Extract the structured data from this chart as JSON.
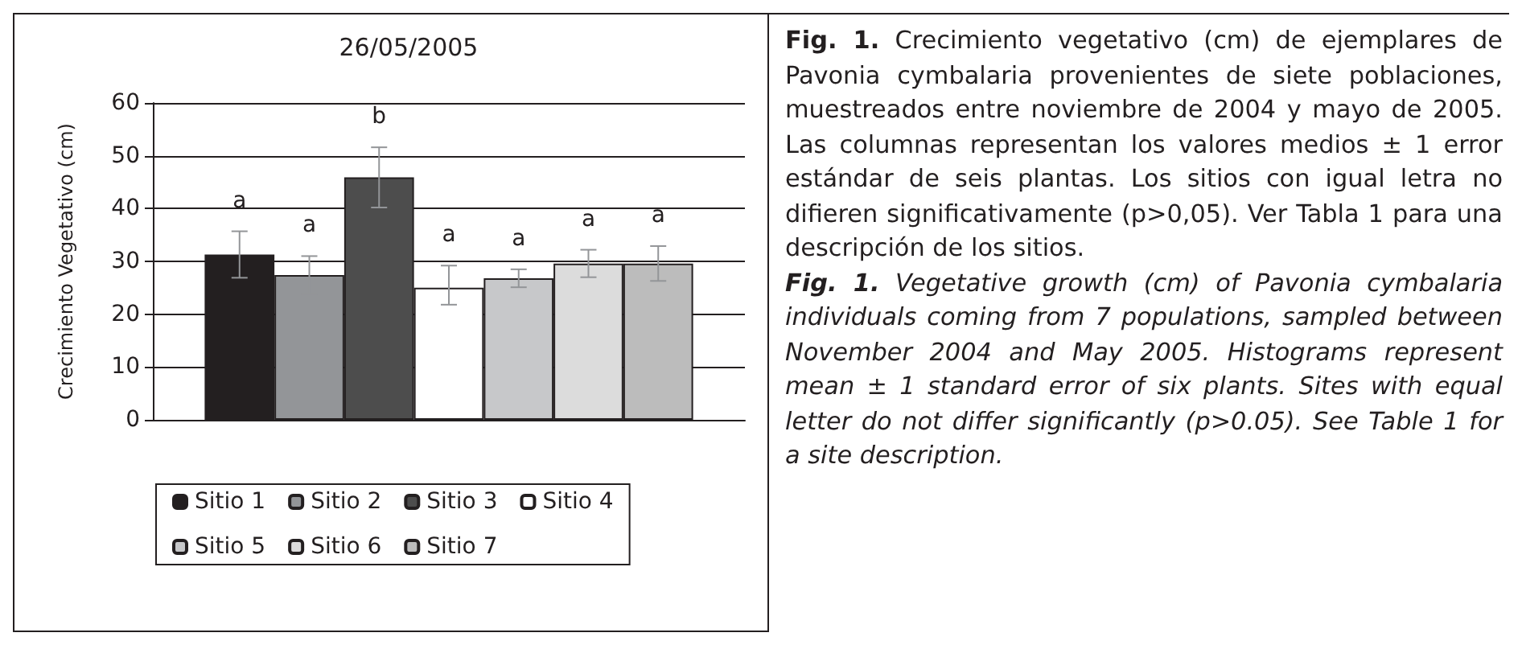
{
  "chart_data": {
    "type": "bar",
    "title": "26/05/2005",
    "ylabel": "Crecimiento Vegetativo (cm)",
    "categories": [
      null
    ],
    "series": [
      {
        "name": "Sitio 1",
        "color": "#231f20",
        "values": [
          31.3
        ],
        "errors": [
          4.4
        ],
        "value_labels": [
          "a"
        ]
      },
      {
        "name": "Sitio 2",
        "color": "#939598",
        "values": [
          27.4
        ],
        "errors": [
          3.6
        ],
        "value_labels": [
          "a"
        ]
      },
      {
        "name": "Sitio 3",
        "color": "#4d4d4d",
        "values": [
          45.9
        ],
        "errors": [
          5.7
        ],
        "value_labels": [
          "b"
        ]
      },
      {
        "name": "Sitio 4",
        "color": "#ffffff",
        "values": [
          25.0
        ],
        "errors": [
          [
            21.8,
            29.2
          ]
        ],
        "value_labels": [
          "a"
        ]
      },
      {
        "name": "Sitio 5",
        "color": "#c7c8ca",
        "values": [
          26.8
        ],
        "errors": [
          1.7
        ],
        "value_labels": [
          "a"
        ]
      },
      {
        "name": "Sitio 6",
        "color": "#dcdcdc",
        "values": [
          29.6
        ],
        "errors": [
          2.6
        ],
        "value_labels": [
          "a"
        ]
      },
      {
        "name": "Sitio 7",
        "color": "#bcbcbc",
        "values": [
          29.6
        ],
        "errors": [
          3.3
        ],
        "value_labels": [
          "a"
        ]
      }
    ],
    "ylim": [
      0,
      60
    ],
    "yticks": [
      0,
      10,
      20,
      30,
      40,
      50,
      60
    ],
    "grid": "y",
    "legend": "bottom",
    "annotations": [
      "Fig. 1.",
      "Crecimiento vegetativo (cm) de ejemplares de Pavonia cymbalaria provenientes de siete poblaciones, muestreados entre noviembre de 2004 y mayo de 2005. Las columnas representan los valores medios ± 1 error estándar de seis plantas. Los sitios con igual letra no difieren significativamente (p>0,05). Ver Tabla 1 para una descripción de los sitios.",
      "Fig. 1.",
      "Vegetative growth (cm) of Pavonia cymbalaria individuals coming from 7 populations, sampled between November 2004 and May 2005. Histograms represent mean ± 1 standard error of six plants. Sites with equal letter do not differ significantly (p>0.05). See Table 1 for a site description."
    ]
  }
}
